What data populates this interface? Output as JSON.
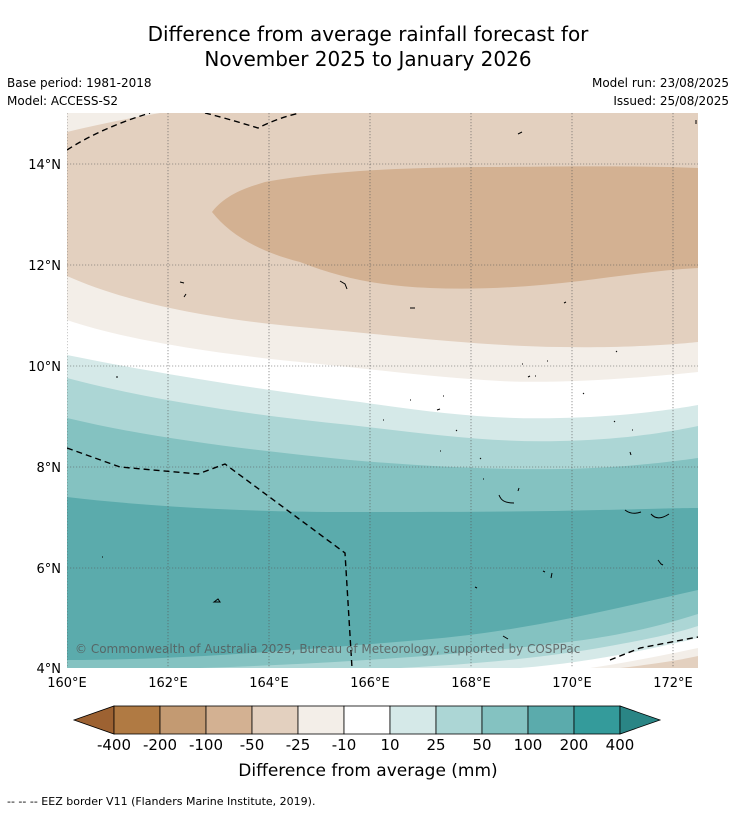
{
  "title": {
    "line1": "Difference from average rainfall forecast for",
    "line2": "November 2025 to January 2026"
  },
  "meta": {
    "base_period": "Base period: 1981-2018",
    "model": "Model: ACCESS-S2",
    "model_run": "Model run: 23/08/2025",
    "issued": "Issued: 25/08/2025"
  },
  "map": {
    "lat_labels": [
      "14°N",
      "12°N",
      "10°N",
      "8°N",
      "6°N",
      "4°N"
    ],
    "lon_labels": [
      "160°E",
      "162°E",
      "164°E",
      "166°E",
      "168°E",
      "170°E",
      "172°E"
    ],
    "copyright": "© Commonwealth of Australia 2025, Bureau of Meteorology, supported by COSPPac"
  },
  "colorbar": {
    "labels": [
      "-400",
      "-200",
      "-100",
      "-50",
      "-25",
      "-10",
      "10",
      "25",
      "50",
      "100",
      "200",
      "400"
    ],
    "colors": [
      "#9d6232",
      "#b07a43",
      "#c39a72",
      "#d3b192",
      "#e3d0bf",
      "#f3eee8",
      "#ffffff",
      "#d5e9e8",
      "#acd6d5",
      "#84c2c1",
      "#5babac",
      "#349b9b",
      "#2a8585"
    ],
    "title": "Difference from average (mm)"
  },
  "footer": "--  --  -- EEZ border V11 (Flanders Marine Institute, 2019)."
}
